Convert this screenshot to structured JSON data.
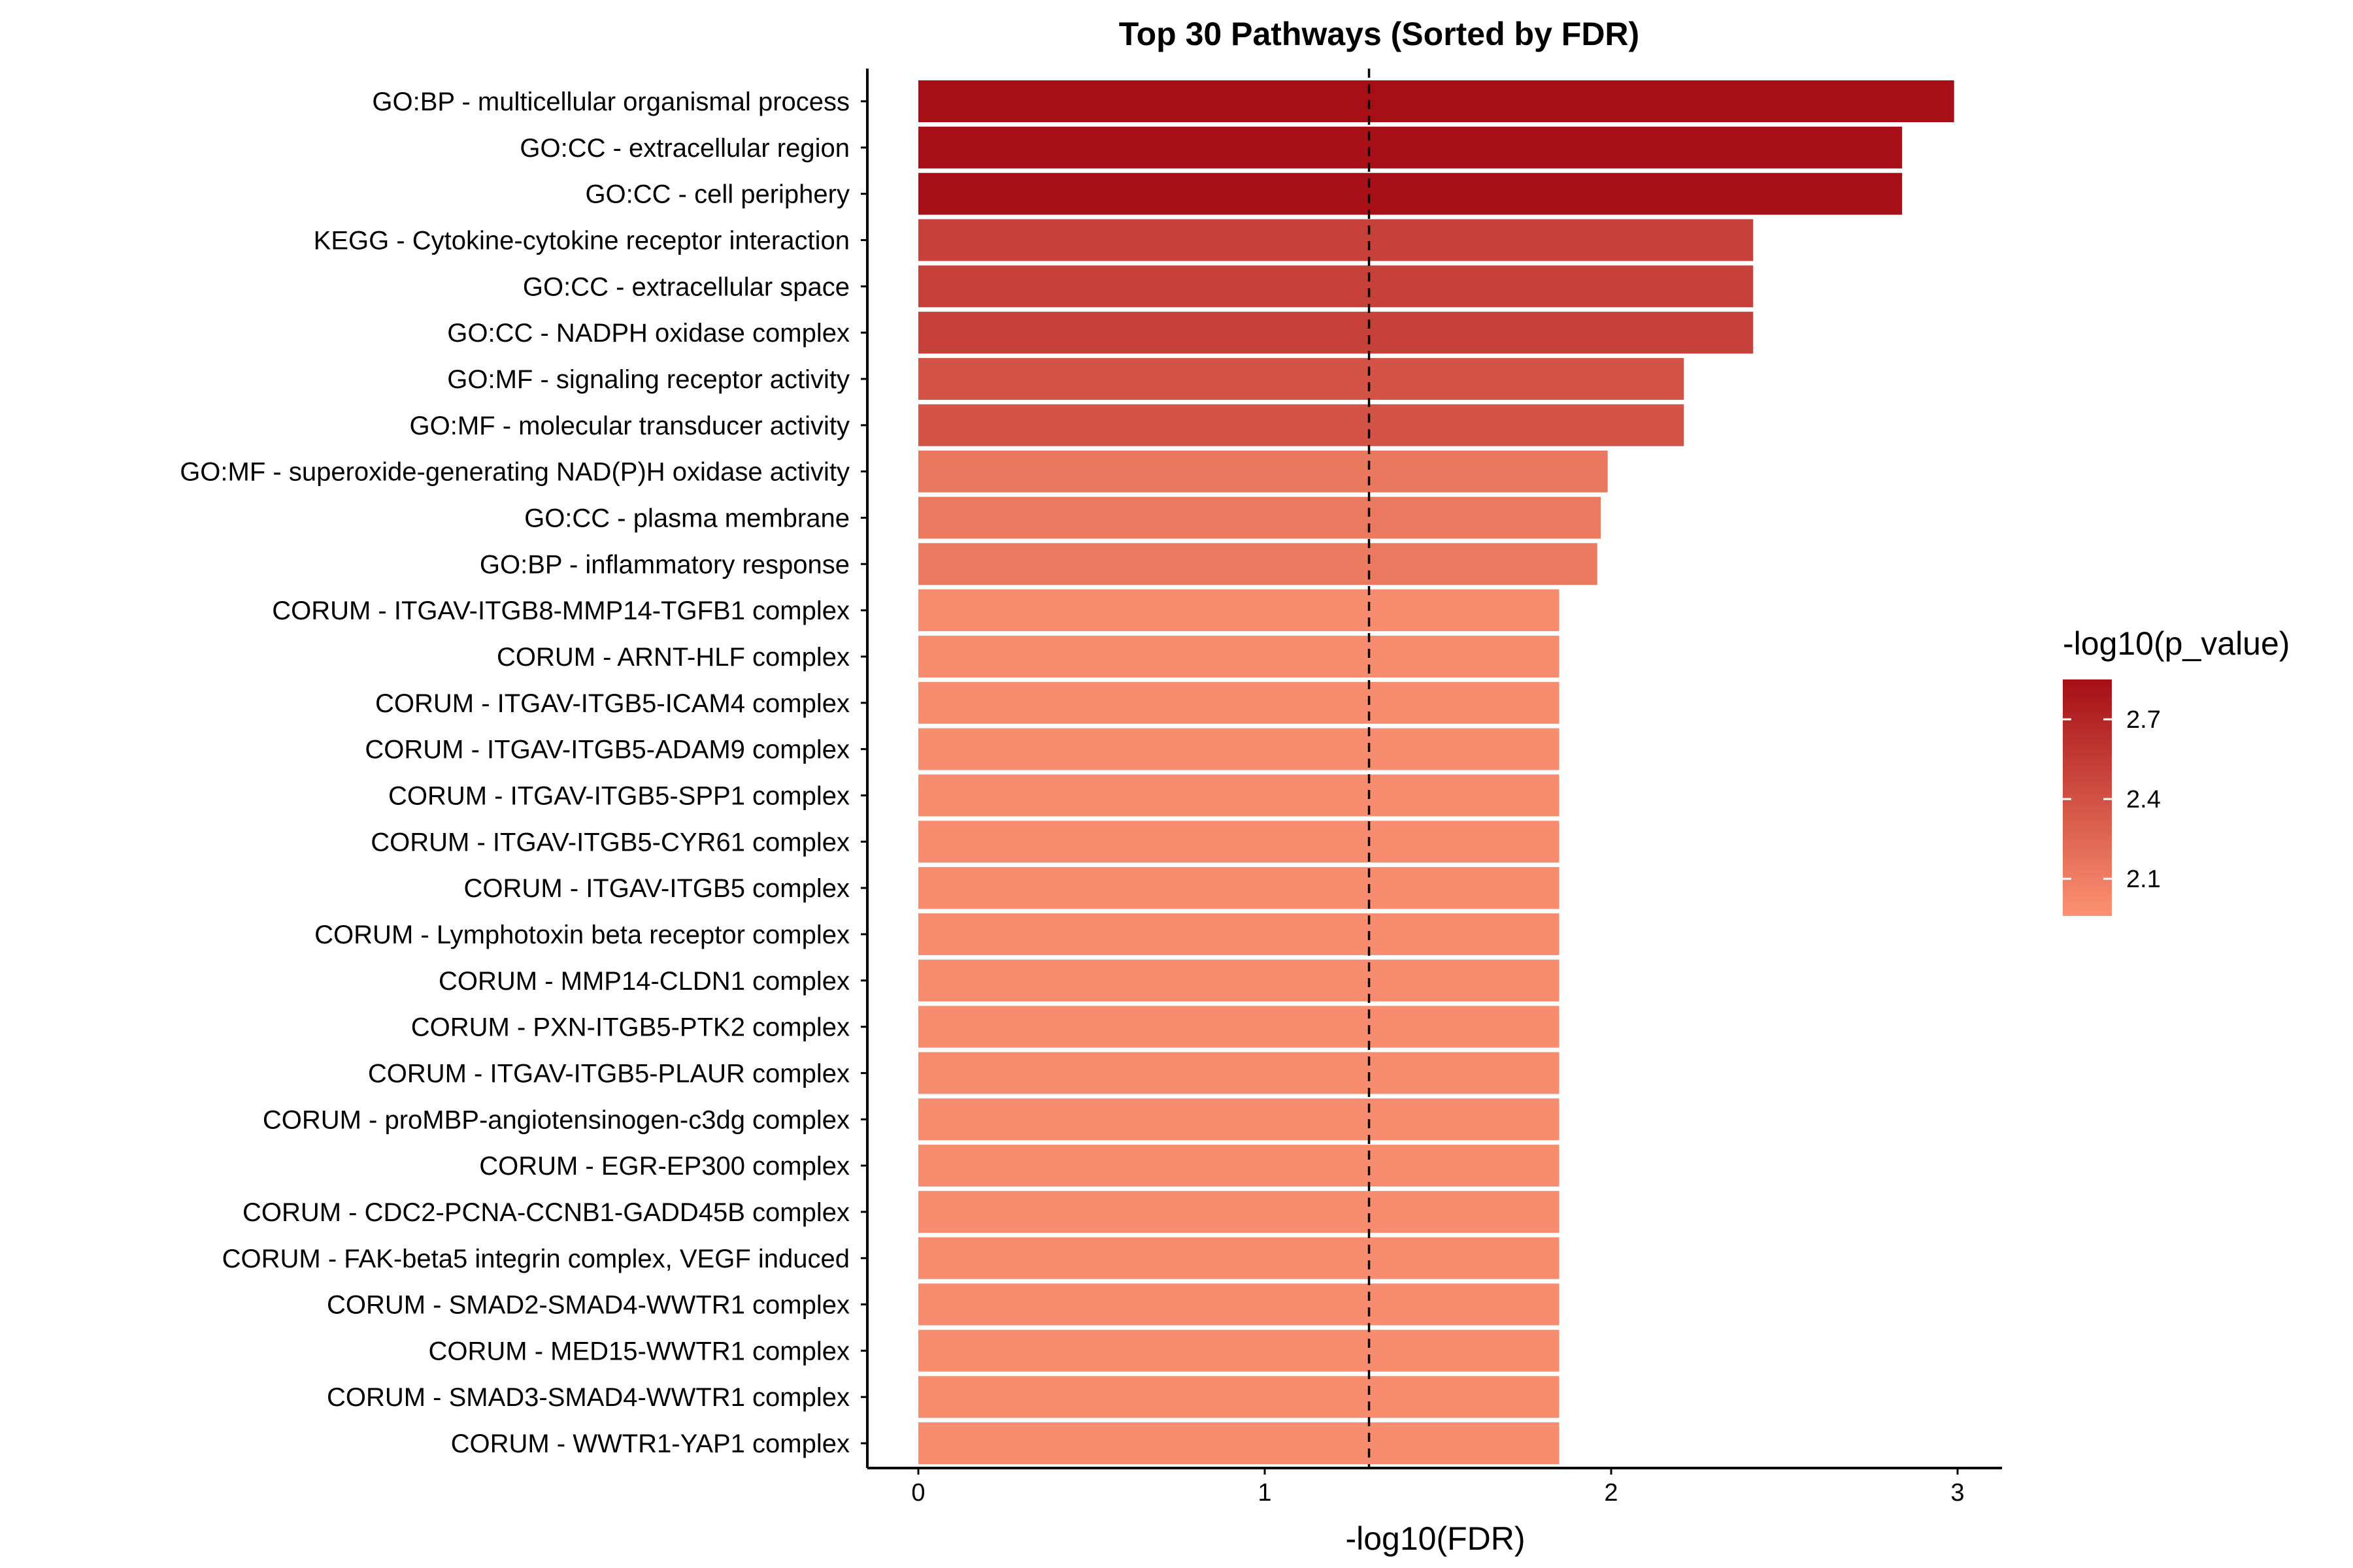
{
  "chart_data": {
    "type": "bar",
    "orientation": "horizontal",
    "title": "Top 30 Pathways (Sorted by FDR)",
    "xlabel": "-log10(FDR)",
    "ylabel": "",
    "xlim": [
      -0.15,
      3.13
    ],
    "xticks": [
      0,
      1,
      2,
      3
    ],
    "reference_line": {
      "x": 1.30103,
      "style": "dashed"
    },
    "grid": false,
    "legend": {
      "title": "-log10(p_value)",
      "placement": "right",
      "ticks": [
        2.1,
        2.4,
        2.7
      ],
      "range": [
        1.96,
        2.85
      ],
      "color_low": "#fc9272",
      "color_high": "#a50f15"
    },
    "categories": [
      "GO:BP - multicellular organismal process",
      "GO:CC - extracellular region",
      "GO:CC - cell periphery",
      "KEGG - Cytokine-cytokine receptor interaction",
      "GO:CC - extracellular space",
      "GO:CC - NADPH oxidase complex",
      "GO:MF - signaling receptor activity",
      "GO:MF - molecular transducer activity",
      "GO:MF - superoxide-generating NAD(P)H oxidase activity",
      "GO:CC - plasma membrane",
      "GO:BP - inflammatory response",
      "CORUM - ITGAV-ITGB8-MMP14-TGFB1 complex",
      "CORUM - ARNT-HLF complex",
      "CORUM - ITGAV-ITGB5-ICAM4 complex",
      "CORUM - ITGAV-ITGB5-ADAM9 complex",
      "CORUM - ITGAV-ITGB5-SPP1 complex",
      "CORUM - ITGAV-ITGB5-CYR61 complex",
      "CORUM - ITGAV-ITGB5 complex",
      "CORUM - Lymphotoxin beta receptor complex",
      "CORUM - MMP14-CLDN1 complex",
      "CORUM - PXN-ITGB5-PTK2 complex",
      "CORUM - ITGAV-ITGB5-PLAUR complex",
      "CORUM - proMBP-angiotensinogen-c3dg complex",
      "CORUM - EGR-EP300 complex",
      "CORUM - CDC2-PCNA-CCNB1-GADD45B complex",
      "CORUM - FAK-beta5 integrin complex, VEGF induced",
      "CORUM - SMAD2-SMAD4-WWTR1 complex",
      "CORUM - MED15-WWTR1 complex",
      "CORUM - SMAD3-SMAD4-WWTR1 complex",
      "CORUM - WWTR1-YAP1 complex"
    ],
    "values": [
      2.99,
      2.84,
      2.84,
      2.41,
      2.41,
      2.41,
      2.21,
      2.21,
      1.99,
      1.97,
      1.96,
      1.85,
      1.85,
      1.85,
      1.85,
      1.85,
      1.85,
      1.85,
      1.85,
      1.85,
      1.85,
      1.85,
      1.85,
      1.85,
      1.85,
      1.85,
      1.85,
      1.85,
      1.85,
      1.85
    ],
    "color_values": [
      2.99,
      2.84,
      2.84,
      2.51,
      2.51,
      2.51,
      2.38,
      2.38,
      2.14,
      2.13,
      2.12,
      2.0,
      2.0,
      2.0,
      2.0,
      2.0,
      2.0,
      2.0,
      2.0,
      2.0,
      2.0,
      2.0,
      2.0,
      2.0,
      2.0,
      2.0,
      2.0,
      2.0,
      2.0,
      2.0
    ]
  }
}
